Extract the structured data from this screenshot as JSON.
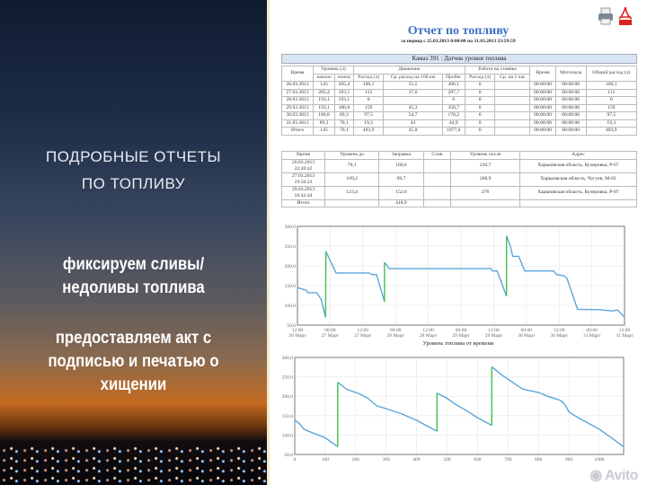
{
  "left": {
    "heading": [
      "ПОДРОБНЫЕ ОТЧЕТЫ",
      "ПО ТОПЛИВУ"
    ],
    "point1": [
      "фиксируем сливы/",
      "недоливы топлива"
    ],
    "point2": [
      "предоставляем акт с",
      "подписью и печатью о",
      "хищении"
    ]
  },
  "report": {
    "icons": [
      "printer-icon",
      "pdf-icon"
    ],
    "title": "Отчет по топливу",
    "period": "за период с 25.03.2013 0:00:00 по 31.03.2013 23:59:59",
    "banner": "Камаз 391 : Датчик уровня топлива",
    "table1": {
      "group_headers": [
        "Время",
        "Уровень (л)",
        "Движение",
        "Работа на стоянке",
        "Время",
        "Моточасы",
        "Общий расход (л)"
      ],
      "sub_headers": [
        "начало",
        "конец",
        "Расход (л)",
        "Ср. расход на 100 км",
        "Пробег",
        "Расход (л)",
        "Ср. на 1 час"
      ],
      "rows": [
        [
          "26.03.2013",
          "145",
          "205,4",
          "106,1",
          "51,5",
          "206,1",
          "0",
          "",
          "00:00:00",
          "00:00:00",
          "106,1"
        ],
        [
          "27.03.2013",
          "205,4",
          "193,1",
          "112",
          "37,6",
          "297,7",
          "0",
          "",
          "00:00:00",
          "00:00:00",
          "112"
        ],
        [
          "28.03.2013",
          "193,1",
          "193,1",
          "0",
          "",
          "0",
          "0",
          "",
          "00:00:00",
          "00:00:00",
          "0"
        ],
        [
          "29.03.2013",
          "193,1",
          "186,8",
          "159",
          "45,3",
          "350,7",
          "0",
          "",
          "00:00:00",
          "00:00:00",
          "159"
        ],
        [
          "30.03.2013",
          "186,8",
          "89,3",
          "97,5",
          "54,7",
          "178,2",
          "0",
          "",
          "00:00:00",
          "00:00:00",
          "97,5"
        ],
        [
          "31.03.2013",
          "89,3",
          "70,1",
          "19,3",
          "43",
          "44,9",
          "0",
          "",
          "00:00:00",
          "00:00:00",
          "19,3"
        ],
        [
          "Итого",
          "145",
          "70,1",
          "493,9",
          "45,8",
          "1077,6",
          "0",
          "",
          "00:00:00",
          "00:00:00",
          "493,9"
        ]
      ]
    },
    "table2": {
      "headers": [
        "Время",
        "Уровень до",
        "Заправка",
        "Слив",
        "Уровень после",
        "Адрес"
      ],
      "rows": [
        [
          "26.03.2013 22:20:42",
          "70,1",
          "166,6",
          "",
          "236,7",
          "Харьковская область, Кучеровка, Р-07"
        ],
        [
          "27.03.2013 19:56:23",
          "109,2",
          "99,7",
          "",
          "208,9",
          "Харьковская область, Чугуев, М-03"
        ],
        [
          "29.03.2013 16:42:44",
          "123,4",
          "152,6",
          "",
          "276",
          "Харьковская область, Кучеровка, Р-07"
        ],
        [
          "Итого",
          "",
          "418,9",
          "",
          "",
          ""
        ]
      ]
    }
  },
  "watermark": "Avito",
  "chart_data": [
    {
      "type": "line",
      "title": "",
      "xlabel": "Уровень топлива от времени",
      "ylabel": "",
      "ylim": [
        50,
        300
      ],
      "yticks": [
        "300.0",
        "250.0",
        "200.0",
        "150.0",
        "100.0",
        "50.0"
      ],
      "xlim": [
        "2013-03-26 12:00",
        "2013-03-31 12:00"
      ],
      "xticks": [
        [
          "12:00",
          "26 Март"
        ],
        [
          "00:00",
          "27 Март"
        ],
        [
          "12:00",
          "27 Март"
        ],
        [
          "00:00",
          "28 Март"
        ],
        [
          "12:00",
          "28 Март"
        ],
        [
          "00:00",
          "29 Март"
        ],
        [
          "12:00",
          "29 Март"
        ],
        [
          "00:00",
          "30 Март"
        ],
        [
          "12:00",
          "30 Март"
        ],
        [
          "00:00",
          "31 Март"
        ],
        [
          "12:00",
          "31 Март"
        ]
      ],
      "grid": true,
      "colors": {
        "level": "#5aa6dc",
        "refuel": "#3cc24a"
      },
      "series": [
        {
          "points": [
            [
              "2013-03-26 12:00",
              145
            ],
            [
              "2013-03-26 15:20",
              138
            ],
            [
              "2013-03-26 15:50",
              132
            ],
            [
              "2013-03-26 19:05",
              132
            ],
            [
              "2013-03-26 20:45",
              115
            ],
            [
              "2013-03-26 22:20",
              70.1
            ],
            [
              "2013-03-26 22:25",
              236.7
            ],
            [
              "2013-03-27 02:10",
              182
            ],
            [
              "2013-03-27 14:15",
              182
            ],
            [
              "2013-03-27 15:20",
              178
            ],
            [
              "2013-03-27 17:00",
              178
            ],
            [
              "2013-03-27 19:56",
              109.2
            ],
            [
              "2013-03-27 19:57",
              208.9
            ],
            [
              "2013-03-27 21:40",
              193
            ],
            [
              "2013-03-29 11:00",
              193
            ],
            [
              "2013-03-29 11:35",
              187
            ],
            [
              "2013-03-29 13:15",
              187
            ],
            [
              "2013-03-29 16:42",
              123.4
            ],
            [
              "2013-03-29 16:43",
              276
            ],
            [
              "2013-03-29 18:05",
              250
            ],
            [
              "2013-03-29 19:00",
              224
            ],
            [
              "2013-03-29 21:10",
              224
            ],
            [
              "2013-03-29 23:25",
              187
            ],
            [
              "2013-03-30 10:00",
              187
            ],
            [
              "2013-03-30 11:05",
              178
            ],
            [
              "2013-03-30 13:50",
              175
            ],
            [
              "2013-03-30 14:55",
              168
            ],
            [
              "2013-03-30 18:45",
              90
            ],
            [
              "2013-03-31 02:55",
              89
            ],
            [
              "2013-03-31 07:20",
              86
            ],
            [
              "2013-03-31 09:30",
              88
            ],
            [
              "2013-03-31 12:00",
              70.1
            ]
          ]
        }
      ]
    },
    {
      "type": "line",
      "title": "",
      "xlabel": "",
      "ylabel": "",
      "ylim": [
        50,
        300
      ],
      "xlim": [
        0,
        1080
      ],
      "yticks": [
        "300.0",
        "250.0",
        "200.0",
        "150.0",
        "100.0",
        "50.0"
      ],
      "xticks": [
        "0",
        "100",
        "200",
        "300",
        "400",
        "500",
        "600",
        "700",
        "800",
        "900",
        "1000"
      ],
      "grid": true,
      "colors": {
        "level": "#5aa6dc",
        "refuel": "#3cc24a"
      },
      "series": [
        {
          "points": [
            [
              0,
              138
            ],
            [
              15,
              130
            ],
            [
              30,
              115
            ],
            [
              60,
              105
            ],
            [
              100,
              93
            ],
            [
              141,
              70
            ],
            [
              141,
              236
            ],
            [
              170,
              218
            ],
            [
              210,
              207
            ],
            [
              240,
              195
            ],
            [
              270,
              175
            ],
            [
              300,
              168
            ],
            [
              350,
              155
            ],
            [
              400,
              138
            ],
            [
              467,
              110
            ],
            [
              467,
              208
            ],
            [
              500,
              195
            ],
            [
              530,
              178
            ],
            [
              560,
              165
            ],
            [
              600,
              145
            ],
            [
              647,
              125
            ],
            [
              647,
              276
            ],
            [
              680,
              255
            ],
            [
              730,
              228
            ],
            [
              750,
              218
            ],
            [
              800,
              210
            ],
            [
              830,
              200
            ],
            [
              870,
              190
            ],
            [
              880,
              185
            ],
            [
              890,
              175
            ],
            [
              900,
              160
            ],
            [
              930,
              145
            ],
            [
              970,
              128
            ],
            [
              1000,
              115
            ],
            [
              1040,
              93
            ],
            [
              1080,
              70
            ]
          ]
        }
      ]
    }
  ]
}
